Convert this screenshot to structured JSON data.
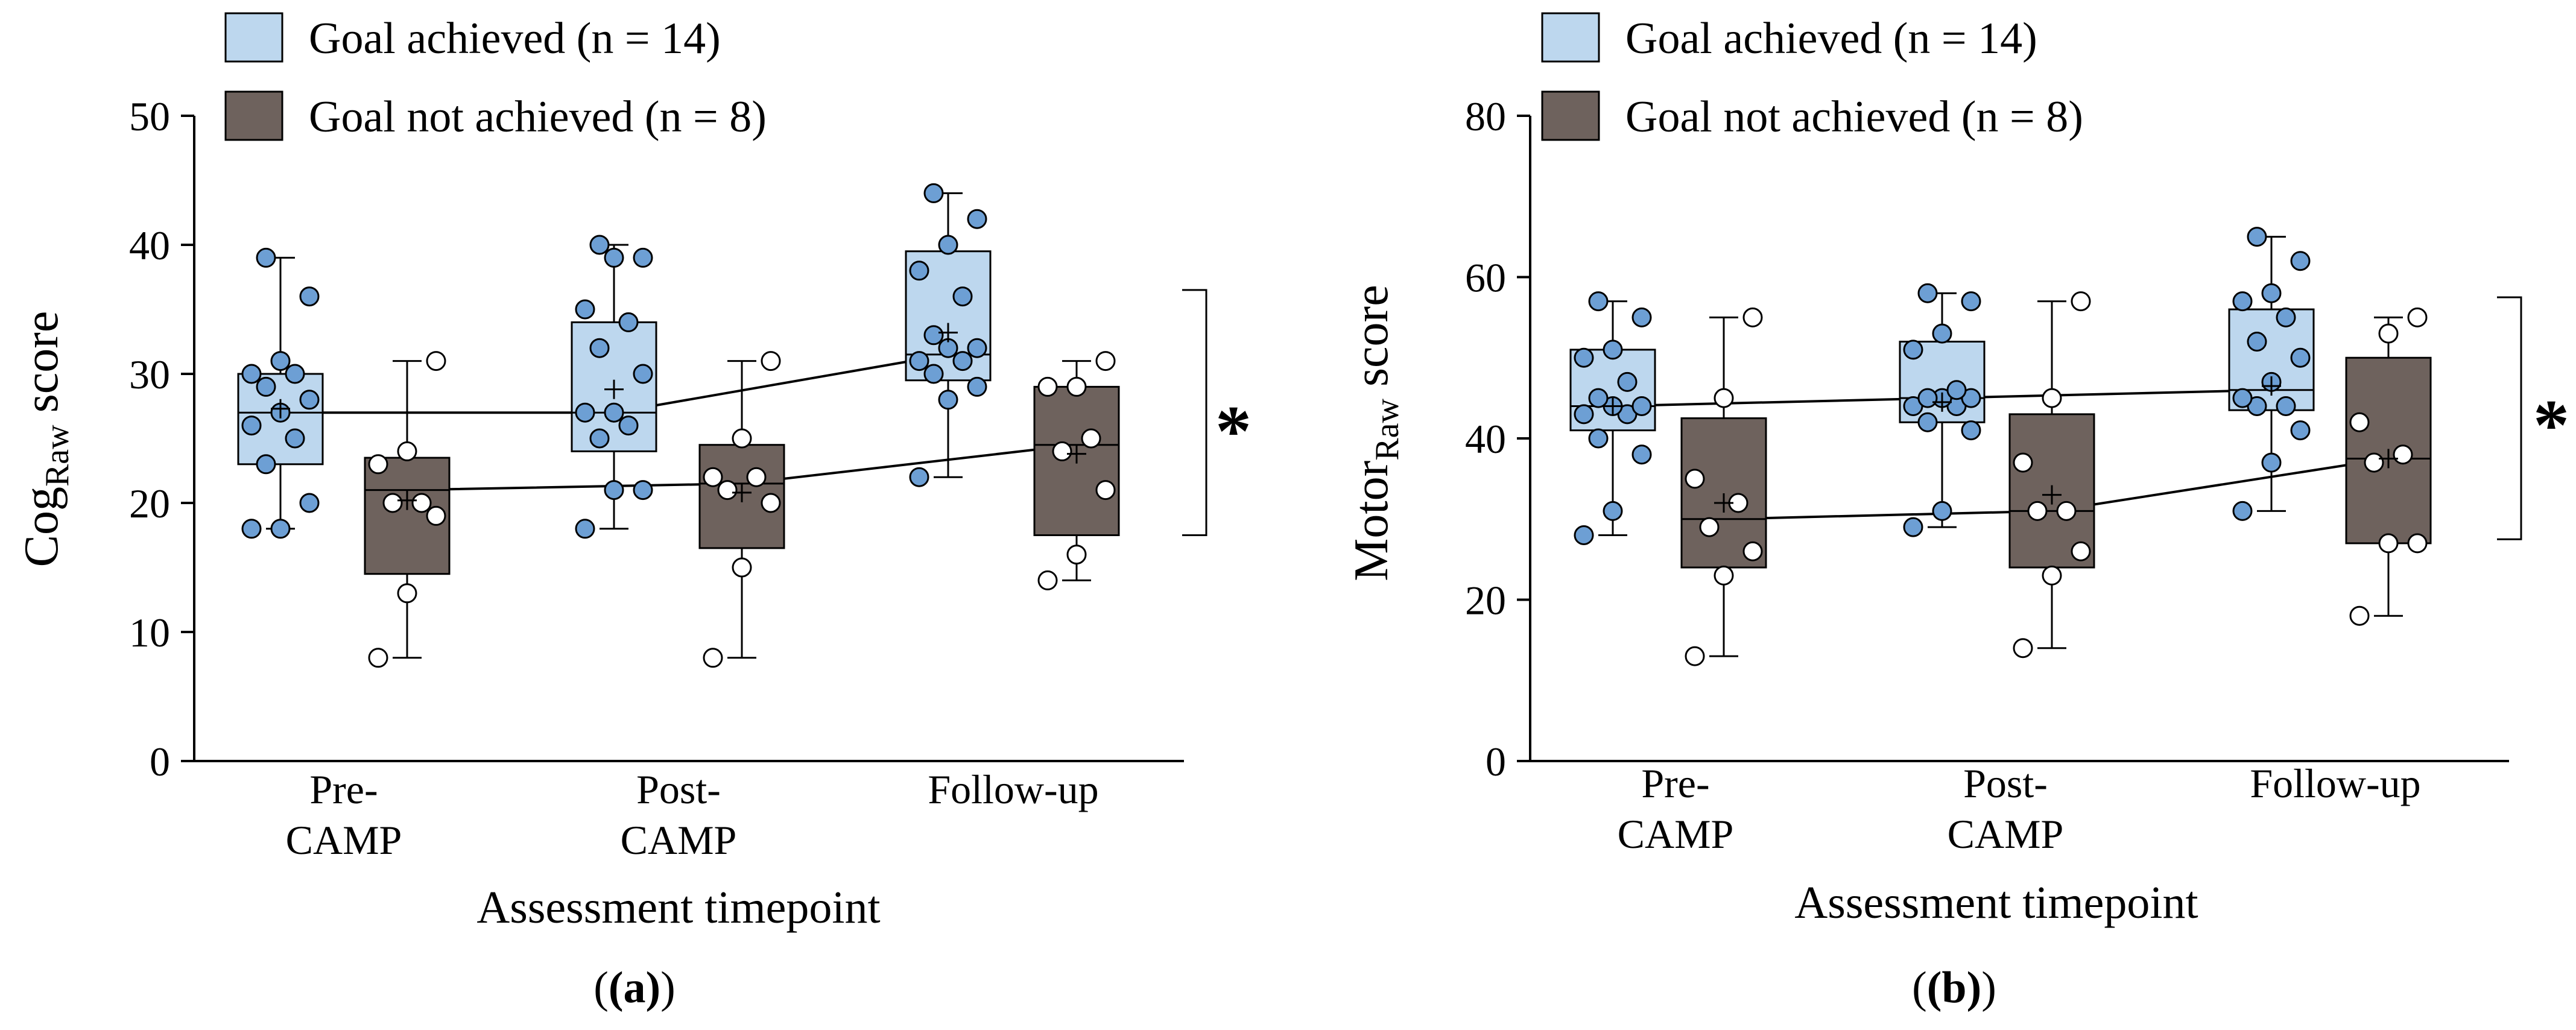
{
  "colors": {
    "achieved_fill": "#bdd7ee",
    "achieved_dot": "#6d9fd4",
    "not_achieved_fill": "#6e625d",
    "not_achieved_dot": "#ffffff",
    "stroke": "#000000"
  },
  "shared": {
    "xlabel": "Assessment timepoint",
    "categories": [
      {
        "line1": "Pre-",
        "line2": "CAMP"
      },
      {
        "line1": "Post-",
        "line2": "CAMP"
      },
      {
        "line1": "Follow-up",
        "line2": ""
      }
    ],
    "legend": {
      "achieved": "Goal achieved (n = 14)",
      "not_achieved": "Goal not achieved (n = 8)"
    },
    "significance": "*"
  },
  "chart_data": [
    {
      "type": "box",
      "panel_label": "(a)",
      "ylabel_main": "Cog",
      "ylabel_sub": "Raw",
      "ylabel_rest": " score",
      "ylim": [
        0,
        50
      ],
      "yticks": [
        0,
        10,
        20,
        30,
        40,
        50
      ],
      "series": [
        {
          "name": "Goal achieved (n = 14)",
          "boxes": [
            {
              "min": 18,
              "q1": 23,
              "median": 27,
              "q3": 30,
              "max": 39,
              "mean": 27.3,
              "points": [
                18,
                18,
                20,
                23,
                25,
                26,
                27,
                28,
                29,
                30,
                30,
                31,
                36,
                39
              ]
            },
            {
              "min": 18,
              "q1": 24,
              "median": 27,
              "q3": 34,
              "max": 40,
              "mean": 28.8,
              "points": [
                18,
                21,
                21,
                25,
                26,
                27,
                27,
                30,
                32,
                34,
                35,
                39,
                39,
                40
              ]
            },
            {
              "min": 22,
              "q1": 29.5,
              "median": 31.5,
              "q3": 39.5,
              "max": 44,
              "mean": 33.2,
              "points": [
                22,
                28,
                29,
                30,
                31,
                31,
                32,
                32,
                33,
                36,
                38,
                40,
                42,
                44
              ]
            }
          ]
        },
        {
          "name": "Goal not achieved (n = 8)",
          "boxes": [
            {
              "min": 8,
              "q1": 14.5,
              "median": 21,
              "q3": 23.5,
              "max": 31,
              "mean": 20.2,
              "points": [
                8,
                13,
                19,
                20,
                20,
                23,
                24,
                31
              ]
            },
            {
              "min": 8,
              "q1": 16.5,
              "median": 21.5,
              "q3": 24.5,
              "max": 31,
              "mean": 20.8,
              "points": [
                8,
                15,
                20,
                21,
                22,
                22,
                25,
                31
              ]
            },
            {
              "min": 14,
              "q1": 17.5,
              "median": 24.5,
              "q3": 29,
              "max": 31,
              "mean": 23.8,
              "points": [
                14,
                16,
                21,
                24,
                25,
                29,
                29,
                31
              ]
            }
          ]
        }
      ],
      "bracket": [
        17.5,
        36.5
      ]
    },
    {
      "type": "box",
      "panel_label": "(b)",
      "ylabel_main": "Motor",
      "ylabel_sub": "Raw",
      "ylabel_rest": " score",
      "ylim": [
        0,
        80
      ],
      "yticks": [
        0,
        20,
        40,
        60,
        80
      ],
      "series": [
        {
          "name": "Goal achieved (n = 14)",
          "boxes": [
            {
              "min": 28,
              "q1": 41,
              "median": 44,
              "q3": 51,
              "max": 57,
              "mean": 44,
              "points": [
                28,
                31,
                38,
                40,
                43,
                43,
                44,
                44,
                45,
                47,
                50,
                51,
                55,
                57
              ]
            },
            {
              "min": 29,
              "q1": 42,
              "median": 45,
              "q3": 52,
              "max": 58,
              "mean": 44.5,
              "points": [
                29,
                31,
                41,
                42,
                44,
                44,
                45,
                45,
                45,
                46,
                51,
                53,
                57,
                58
              ]
            },
            {
              "min": 31,
              "q1": 43.5,
              "median": 46,
              "q3": 56,
              "max": 65,
              "mean": 46.5,
              "points": [
                31,
                37,
                41,
                44,
                44,
                45,
                47,
                50,
                52,
                55,
                57,
                58,
                62,
                65
              ]
            }
          ]
        },
        {
          "name": "Goal not achieved (n = 8)",
          "boxes": [
            {
              "min": 13,
              "q1": 24,
              "median": 30,
              "q3": 42.5,
              "max": 55,
              "mean": 32,
              "points": [
                13,
                23,
                26,
                29,
                32,
                35,
                45,
                55
              ]
            },
            {
              "min": 14,
              "q1": 24,
              "median": 31,
              "q3": 43,
              "max": 57,
              "mean": 33,
              "points": [
                14,
                23,
                26,
                31,
                31,
                37,
                45,
                57
              ]
            },
            {
              "min": 18,
              "q1": 27,
              "median": 37.5,
              "q3": 50,
              "max": 55,
              "mean": 37.5,
              "points": [
                18,
                27,
                27,
                37,
                38,
                42,
                53,
                55
              ]
            }
          ]
        }
      ],
      "bracket": [
        27.5,
        57.5
      ]
    }
  ]
}
